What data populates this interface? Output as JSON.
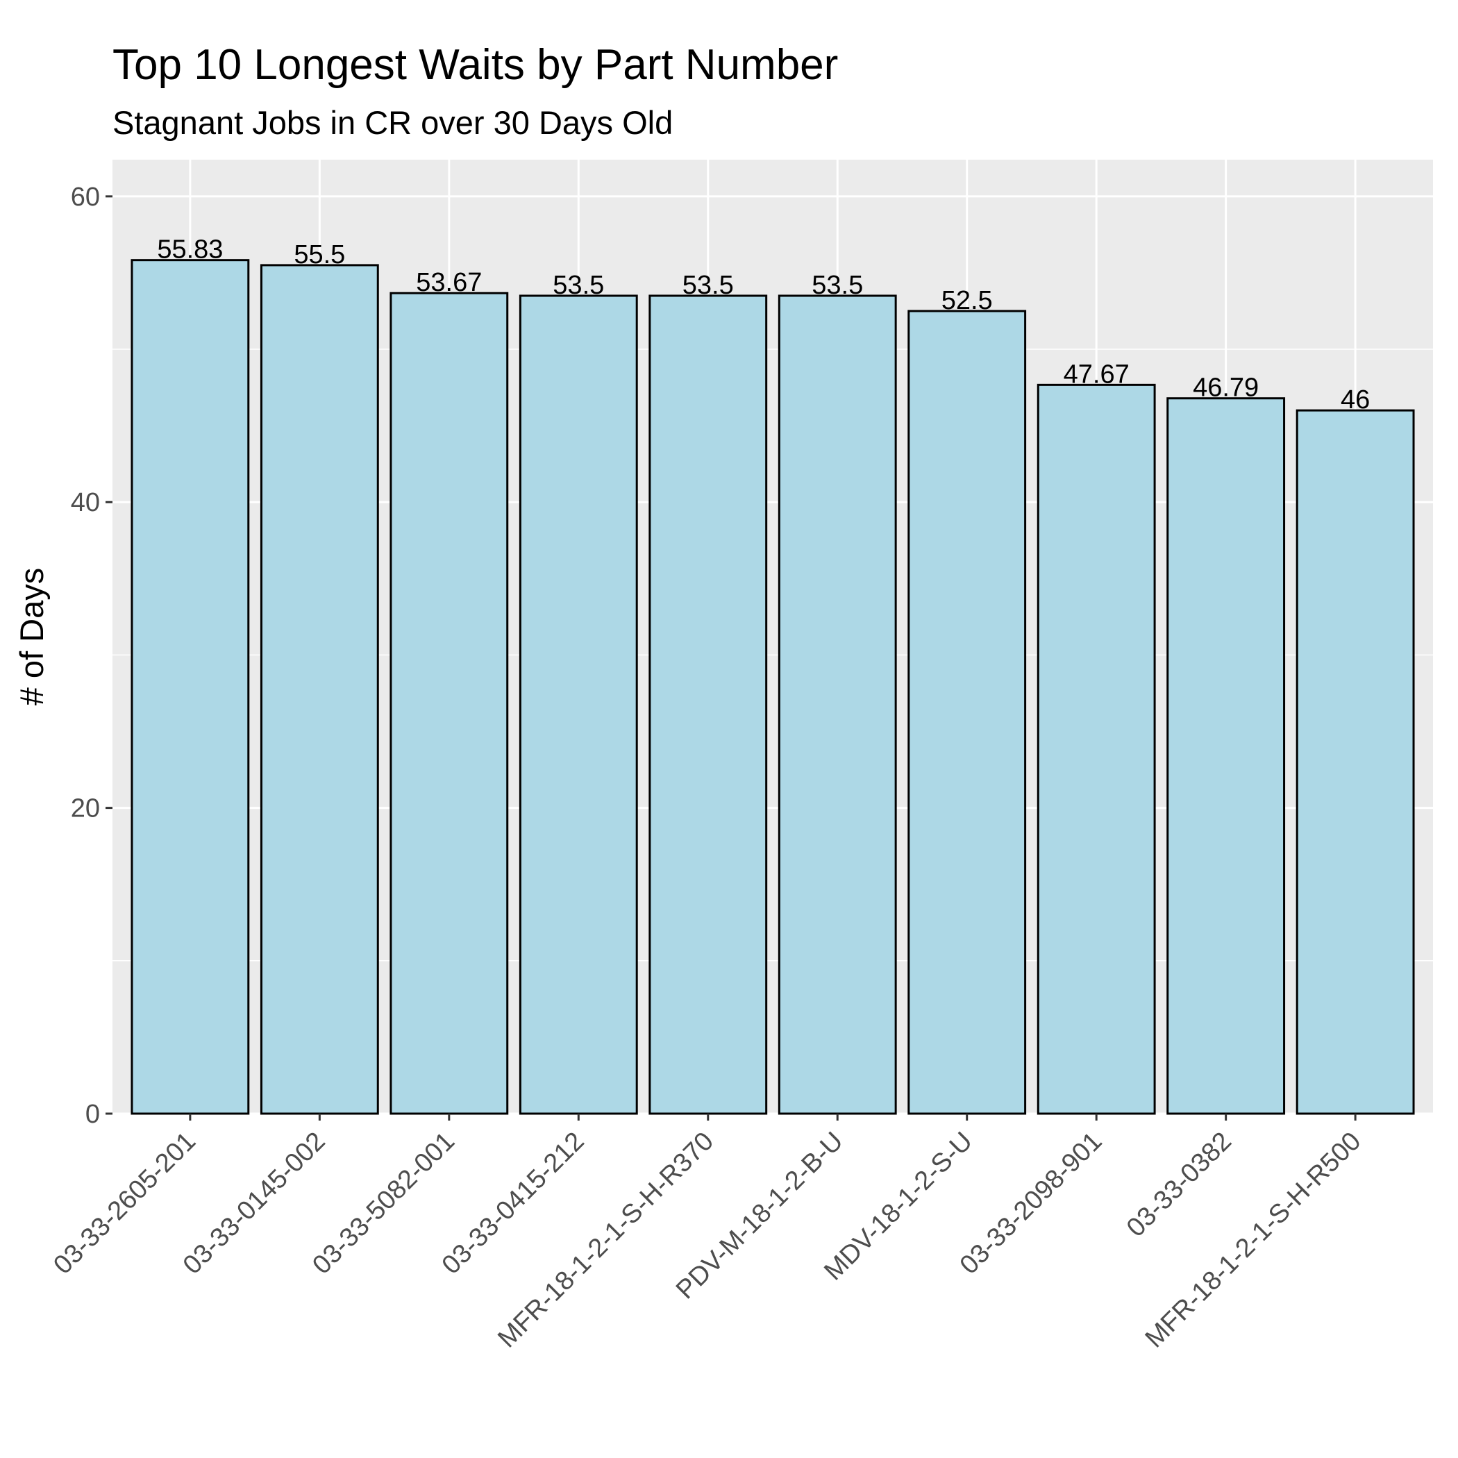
{
  "chart_data": {
    "type": "bar",
    "title": "Top 10 Longest Waits by Part Number",
    "subtitle": "Stagnant Jobs in CR over 30 Days Old",
    "xlabel": "",
    "ylabel": "# of Days",
    "categories": [
      "03-33-2605-201",
      "03-33-0145-002",
      "03-33-5082-001",
      "03-33-0415-212",
      "MFR-18-1-2-1-S-H-R370",
      "PDV-M-18-1-2-B-U",
      "MDV-18-1-2-S-U",
      "03-33-2098-901",
      "03-33-0382",
      "MFR-18-1-2-1-S-H-R500"
    ],
    "values": [
      55.83,
      55.5,
      53.67,
      53.5,
      53.5,
      53.5,
      52.5,
      47.67,
      46.79,
      46
    ],
    "data_labels": [
      "55.83",
      "55.5",
      "53.67",
      "53.5",
      "53.5",
      "53.5",
      "52.5",
      "47.67",
      "46.79",
      "46"
    ],
    "ylim": [
      0,
      62.4
    ],
    "yticks": [
      0,
      20,
      40,
      60
    ],
    "ytick_labels": [
      "0",
      "20",
      "40",
      "60"
    ],
    "grid": true,
    "colors": {
      "panel_background": "#ebebeb",
      "grid": "#ffffff",
      "bar_fill": "#add8e6",
      "bar_outline": "#000000",
      "tick_text": "#4d4d4d"
    }
  }
}
